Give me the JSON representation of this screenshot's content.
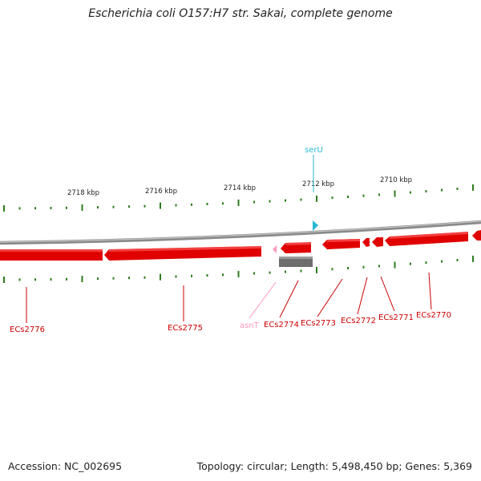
{
  "title": "Escherichia coli O157:H7 str. Sakai, complete genome",
  "footer": {
    "accession": "Accession: NC_002695",
    "summary": "Topology: circular; Length: 5,498,450 bp; Genes: 5,369"
  },
  "colors": {
    "gene": "#e00000",
    "tick": "#2e7d1e",
    "backbone": "#8a8a8a",
    "trna": "#ff99bb",
    "rrna_like": "#29b6d6",
    "other_feature": "#6e6e6e",
    "gene_label": "#cc0000"
  },
  "scale_labels": [
    "2718 kbp",
    "2716 kbp",
    "2714 kbp",
    "2712 kbp",
    "2710 kbp"
  ],
  "features": [
    {
      "label": "serU",
      "kind": "trna_top"
    },
    {
      "label": "asnT",
      "kind": "trna"
    },
    {
      "label": "ECs2776",
      "kind": "gene"
    },
    {
      "label": "ECs2775",
      "kind": "gene"
    },
    {
      "label": "ECs2774",
      "kind": "gene"
    },
    {
      "label": "ECs2773",
      "kind": "gene"
    },
    {
      "label": "ECs2772",
      "kind": "gene"
    },
    {
      "label": "ECs2771",
      "kind": "gene"
    },
    {
      "label": "ECs2770",
      "kind": "gene"
    }
  ]
}
